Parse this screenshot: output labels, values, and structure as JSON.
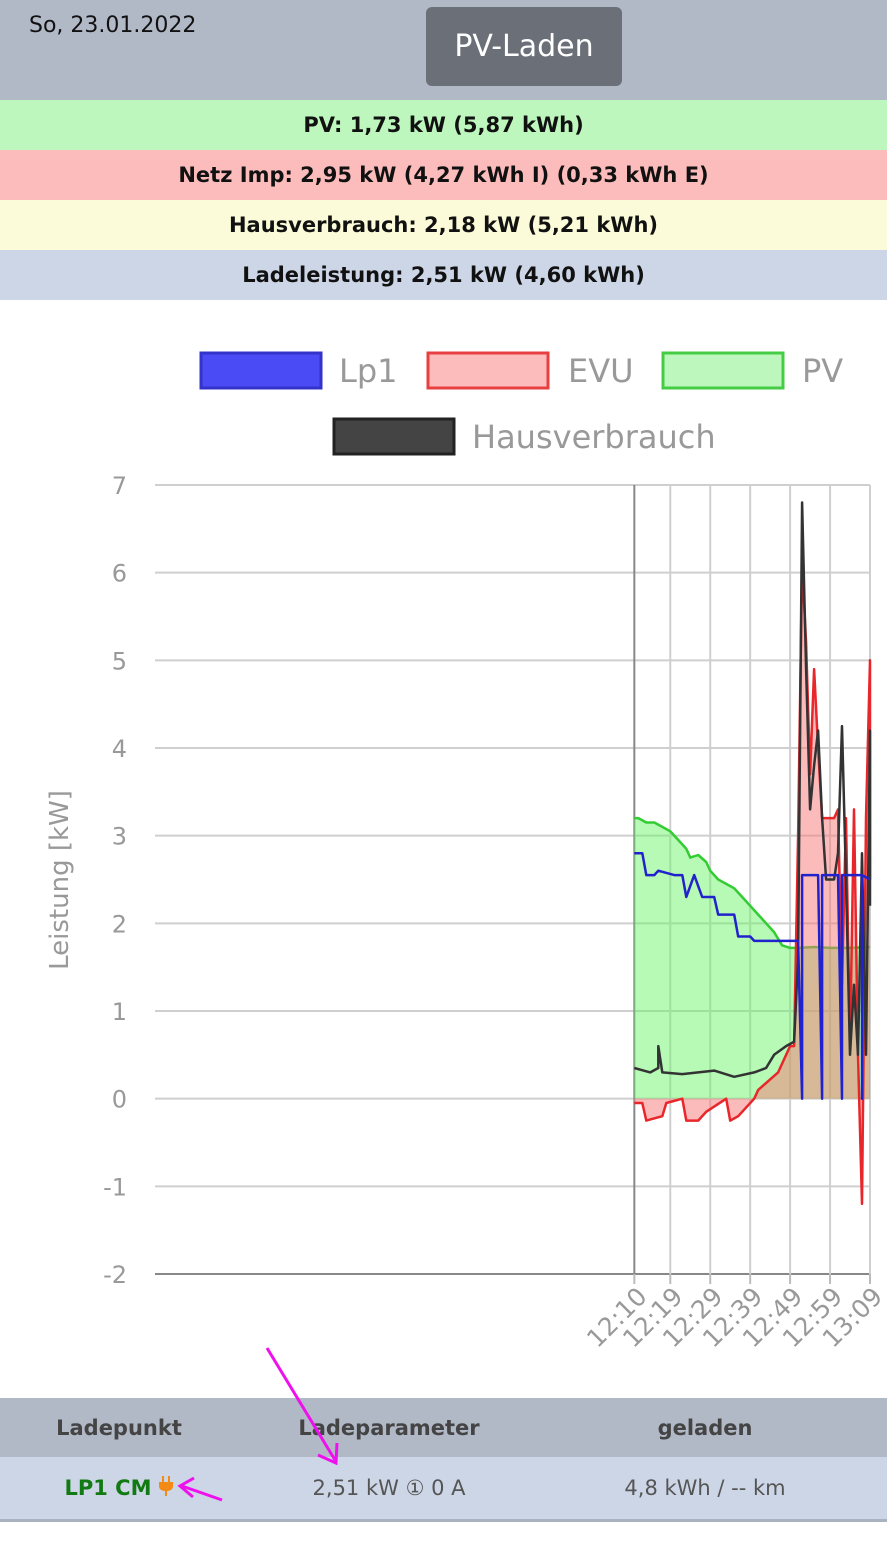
{
  "header": {
    "date": "So, 23.01.2022",
    "mode_button": "PV-Laden"
  },
  "summary": {
    "pv": "PV: 1,73 kW (5,87 kWh)",
    "netz": "Netz Imp: 2,95 kW (4,27 kWh I) (0,33 kWh E)",
    "haus": "Hausverbrauch: 2,18 kW (5,21 kWh)",
    "lade": "Ladeleistung: 2,51 kW (4,60 kWh)"
  },
  "colors": {
    "pv": "#33cc33",
    "evu": "#e8272b",
    "lp1": "#2222cc",
    "haus": "#333333",
    "annotation": "#ee11ee",
    "lp_name": "#127a12",
    "plug_icon": "#f28a14"
  },
  "chart_data": {
    "type": "line",
    "xlabel": "",
    "ylabel": "Leistung [kW]",
    "ylim": [
      -2,
      7
    ],
    "yticks": [
      "7",
      "6",
      "5",
      "4",
      "3",
      "2",
      "1",
      "0",
      "-1",
      "-2"
    ],
    "xticks": [
      "12:10",
      "12:19",
      "12:29",
      "12:39",
      "12:49",
      "12:59",
      "13:09"
    ],
    "legend_position": "top",
    "grid": true,
    "series": [
      {
        "name": "Lp1",
        "fill": false,
        "points": [
          [
            "12:10",
            2.8
          ],
          [
            "12:12",
            2.8
          ],
          [
            "12:13",
            2.55
          ],
          [
            "12:15",
            2.55
          ],
          [
            "12:16",
            2.6
          ],
          [
            "12:20",
            2.55
          ],
          [
            "12:22",
            2.55
          ],
          [
            "12:23",
            2.3
          ],
          [
            "12:25",
            2.55
          ],
          [
            "12:27",
            2.3
          ],
          [
            "12:30",
            2.3
          ],
          [
            "12:31",
            2.1
          ],
          [
            "12:35",
            2.1
          ],
          [
            "12:36",
            1.85
          ],
          [
            "12:39",
            1.85
          ],
          [
            "12:40",
            1.8
          ],
          [
            "12:45",
            1.8
          ],
          [
            "12:50",
            1.8
          ],
          [
            "12:51",
            1.8
          ],
          [
            "12:52",
            0.0
          ],
          [
            "12:52",
            2.55
          ],
          [
            "12:56",
            2.55
          ],
          [
            "12:57",
            0.0
          ],
          [
            "12:57",
            2.55
          ],
          [
            "13:01",
            2.55
          ],
          [
            "13:02",
            0.0
          ],
          [
            "13:02",
            2.55
          ],
          [
            "13:07",
            2.55
          ],
          [
            "13:07",
            0.0
          ],
          [
            "13:07",
            2.55
          ],
          [
            "13:09",
            2.5
          ]
        ]
      },
      {
        "name": "EVU",
        "fill": true,
        "points": [
          [
            "12:10",
            -0.05
          ],
          [
            "12:12",
            -0.05
          ],
          [
            "12:13",
            -0.25
          ],
          [
            "12:17",
            -0.2
          ],
          [
            "12:18",
            -0.05
          ],
          [
            "12:22",
            0.0
          ],
          [
            "12:23",
            -0.25
          ],
          [
            "12:26",
            -0.25
          ],
          [
            "12:28",
            -0.15
          ],
          [
            "12:33",
            0.0
          ],
          [
            "12:34",
            -0.25
          ],
          [
            "12:36",
            -0.2
          ],
          [
            "12:40",
            0.0
          ],
          [
            "12:41",
            0.1
          ],
          [
            "12:46",
            0.3
          ],
          [
            "12:49",
            0.6
          ],
          [
            "12:50",
            0.6
          ],
          [
            "12:51",
            3.0
          ],
          [
            "12:52",
            6.1
          ],
          [
            "12:53",
            5.2
          ],
          [
            "12:54",
            3.7
          ],
          [
            "12:55",
            4.9
          ],
          [
            "12:56",
            4.0
          ],
          [
            "12:57",
            3.2
          ],
          [
            "12:58",
            3.2
          ],
          [
            "13:00",
            3.2
          ],
          [
            "13:01",
            3.3
          ],
          [
            "13:02",
            1.3
          ],
          [
            "13:03",
            3.2
          ],
          [
            "13:04",
            0.6
          ],
          [
            "13:05",
            3.3
          ],
          [
            "13:06",
            0.5
          ],
          [
            "13:07",
            -1.2
          ],
          [
            "13:08",
            3.2
          ],
          [
            "13:09",
            5.0
          ],
          [
            "13:09",
            2.5
          ]
        ]
      },
      {
        "name": "PV",
        "fill": true,
        "points": [
          [
            "12:10",
            3.2
          ],
          [
            "12:11",
            3.2
          ],
          [
            "12:13",
            3.15
          ],
          [
            "12:15",
            3.15
          ],
          [
            "12:17",
            3.1
          ],
          [
            "12:19",
            3.05
          ],
          [
            "12:21",
            2.95
          ],
          [
            "12:23",
            2.85
          ],
          [
            "12:24",
            2.75
          ],
          [
            "12:26",
            2.78
          ],
          [
            "12:28",
            2.7
          ],
          [
            "12:29",
            2.6
          ],
          [
            "12:31",
            2.5
          ],
          [
            "12:33",
            2.45
          ],
          [
            "12:35",
            2.4
          ],
          [
            "12:37",
            2.3
          ],
          [
            "12:39",
            2.2
          ],
          [
            "12:41",
            2.1
          ],
          [
            "12:43",
            2.0
          ],
          [
            "12:45",
            1.9
          ],
          [
            "12:47",
            1.75
          ],
          [
            "12:49",
            1.72
          ],
          [
            "12:51",
            1.72
          ],
          [
            "12:55",
            1.73
          ],
          [
            "12:59",
            1.72
          ],
          [
            "13:04",
            1.72
          ],
          [
            "13:09",
            1.73
          ]
        ]
      },
      {
        "name": "Hausverbrauch",
        "fill": false,
        "points": [
          [
            "12:10",
            0.35
          ],
          [
            "12:14",
            0.3
          ],
          [
            "12:16",
            0.35
          ],
          [
            "12:16",
            0.6
          ],
          [
            "12:17",
            0.3
          ],
          [
            "12:22",
            0.28
          ],
          [
            "12:26",
            0.3
          ],
          [
            "12:30",
            0.32
          ],
          [
            "12:35",
            0.25
          ],
          [
            "12:40",
            0.3
          ],
          [
            "12:43",
            0.35
          ],
          [
            "12:45",
            0.5
          ],
          [
            "12:48",
            0.6
          ],
          [
            "12:50",
            0.65
          ],
          [
            "12:51",
            1.6
          ],
          [
            "12:52",
            6.8
          ],
          [
            "12:53",
            4.9
          ],
          [
            "12:54",
            3.3
          ],
          [
            "12:55",
            3.8
          ],
          [
            "12:56",
            4.2
          ],
          [
            "12:57",
            3.2
          ],
          [
            "12:58",
            2.5
          ],
          [
            "13:00",
            2.5
          ],
          [
            "13:01",
            2.8
          ],
          [
            "13:02",
            4.25
          ],
          [
            "13:03",
            2.5
          ],
          [
            "13:04",
            0.5
          ],
          [
            "13:05",
            1.3
          ],
          [
            "13:06",
            0.5
          ],
          [
            "13:07",
            2.8
          ],
          [
            "13:08",
            0.5
          ],
          [
            "13:09",
            4.2
          ],
          [
            "13:09",
            2.2
          ]
        ]
      }
    ]
  },
  "table": {
    "headers": [
      "Ladepunkt",
      "Ladeparameter",
      "geladen"
    ],
    "rows": [
      {
        "name": "LP1 CM",
        "params": "2,51 kW ① 0 A",
        "charged": "4,8 kWh / -- km",
        "plug_icon": "plug-icon"
      }
    ]
  }
}
